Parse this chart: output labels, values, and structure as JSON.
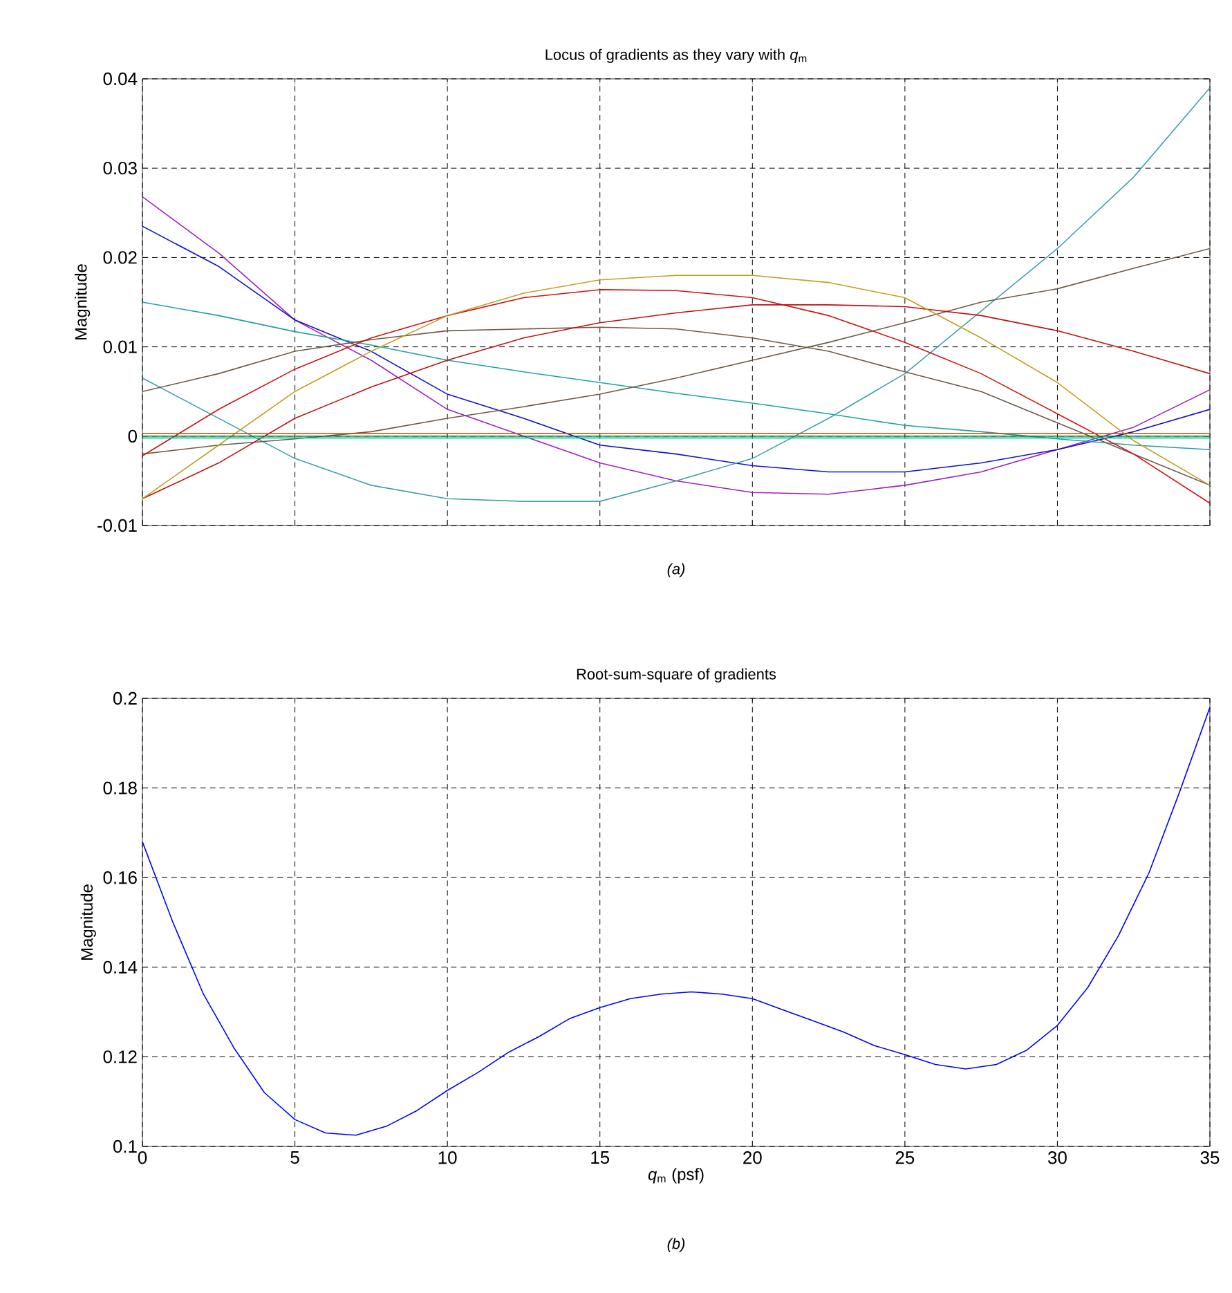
{
  "chart_data": [
    {
      "type": "line",
      "title": "Locus of gradients as they vary with *q*$_{m}$",
      "ylabel": "Magnitude",
      "annotations": [
        "(a)"
      ],
      "x": [
        0,
        2.5,
        5,
        7.5,
        10,
        12.5,
        15,
        17.5,
        20,
        22.5,
        25,
        27.5,
        30,
        32.5,
        35
      ],
      "series": [
        {
          "color": "#a020c0",
          "values": [
            0.0268,
            0.0205,
            0.013,
            0.0085,
            0.003,
            0.0,
            -0.003,
            -0.005,
            -0.0063,
            -0.0065,
            -0.0055,
            -0.004,
            -0.0015,
            0.001,
            0.0052
          ]
        },
        {
          "color": "#1010d0",
          "values": [
            0.0235,
            0.019,
            0.013,
            0.0095,
            0.0047,
            0.002,
            -0.001,
            -0.002,
            -0.0033,
            -0.004,
            -0.004,
            -0.003,
            -0.0015,
            0.0005,
            0.003
          ]
        },
        {
          "color": "#20a0a0",
          "values": [
            0.015,
            0.0135,
            0.0117,
            0.0102,
            0.0085,
            0.0072,
            0.006,
            0.0048,
            0.0037,
            0.0025,
            0.0012,
            0.0005,
            -0.0003,
            -0.001,
            -0.0015
          ]
        },
        {
          "color": "#40a0a8",
          "values": [
            0.0065,
            0.002,
            -0.0025,
            -0.0055,
            -0.007,
            -0.0073,
            -0.0073,
            -0.005,
            -0.0025,
            0.002,
            0.007,
            0.014,
            0.021,
            0.029,
            0.039
          ]
        },
        {
          "color": "#6e5a46",
          "values": [
            0.005,
            0.007,
            0.0095,
            0.0108,
            0.0118,
            0.012,
            0.0122,
            0.012,
            0.011,
            0.0095,
            0.0072,
            0.005,
            0.0015,
            -0.002,
            -0.0055
          ]
        },
        {
          "color": "#6e5a46",
          "values": [
            -0.002,
            -0.001,
            -0.0003,
            0.0005,
            0.002,
            0.0033,
            0.0047,
            0.0065,
            0.0085,
            0.0105,
            0.0127,
            0.015,
            0.0165,
            0.0188,
            0.021
          ]
        },
        {
          "color": "#d01010",
          "values": [
            -0.0022,
            0.003,
            0.0075,
            0.011,
            0.0135,
            0.0155,
            0.0164,
            0.0163,
            0.0155,
            0.0135,
            0.0105,
            0.007,
            0.0025,
            -0.002,
            -0.0075
          ]
        },
        {
          "color": "#c01010",
          "values": [
            -0.007,
            -0.003,
            0.002,
            0.0055,
            0.0085,
            0.011,
            0.0127,
            0.0138,
            0.0147,
            0.0147,
            0.0145,
            0.0135,
            0.0118,
            0.0095,
            0.007
          ]
        },
        {
          "color": "#c0a020",
          "values": [
            -0.007,
            -0.001,
            0.005,
            0.0095,
            0.0135,
            0.016,
            0.0175,
            0.018,
            0.018,
            0.0172,
            0.0155,
            0.011,
            0.006,
            -0.0005,
            -0.0055
          ]
        },
        {
          "color": "#00c0c0",
          "values": [
            -0.0002,
            -0.0002,
            -0.0002,
            -0.0002,
            -0.0002,
            -0.0002,
            -0.0002,
            -0.0002,
            -0.0002,
            -0.0002,
            -0.0002,
            -0.0002,
            -0.0002,
            -0.0002,
            -0.0002
          ]
        },
        {
          "color": "#e04000",
          "values": [
            0.0003,
            0.0003,
            0.0003,
            0.0003,
            0.0003,
            0.0003,
            0.0003,
            0.0003,
            0.0003,
            0.0003,
            0.0003,
            0.0003,
            0.0003,
            0.0003,
            0.0003
          ]
        },
        {
          "color": "#008000",
          "values": [
            0.0,
            0.0,
            0.0,
            0.0,
            0.0,
            0.0,
            0.0,
            0.0,
            0.0,
            0.0,
            0.0,
            0.0,
            0.0,
            0.0,
            0.0
          ]
        }
      ],
      "xlim": [
        0,
        35
      ],
      "xticks": [
        {
          "value": 0,
          "label": null
        },
        {
          "value": 5,
          "label": null
        },
        {
          "value": 10,
          "label": null
        },
        {
          "value": 15,
          "label": null
        },
        {
          "value": 20,
          "label": null
        },
        {
          "value": 25,
          "label": null
        },
        {
          "value": 30,
          "label": null
        },
        {
          "value": 35,
          "label": null
        }
      ],
      "ylim": [
        -0.01,
        0.04
      ],
      "yticks": [
        -0.01,
        0,
        0.01,
        0.02,
        0.03,
        0.04
      ],
      "tick_labels": "y",
      "grid": true
    },
    {
      "type": "line",
      "title": "Root-sum-square of gradients",
      "xlabel": "*q*$_{m}$ (psf)",
      "ylabel": "Magnitude",
      "annotations": [
        "(b)"
      ],
      "x": [
        0,
        1,
        2,
        3,
        4,
        5,
        6,
        7,
        8,
        9,
        10,
        11,
        12,
        13,
        14,
        15,
        16,
        17,
        18,
        19,
        20,
        21,
        22,
        23,
        24,
        25,
        26,
        27,
        28,
        29,
        30,
        31,
        32,
        33,
        34,
        35
      ],
      "series": [
        {
          "color": "#0000ff",
          "values": [
            0.168,
            0.15,
            0.134,
            0.122,
            0.112,
            0.106,
            0.103,
            0.1025,
            0.1045,
            0.108,
            0.1125,
            0.1165,
            0.121,
            0.1245,
            0.1285,
            0.131,
            0.133,
            0.134,
            0.1345,
            0.134,
            0.133,
            0.1305,
            0.128,
            0.1255,
            0.1225,
            0.1205,
            0.1183,
            0.1173,
            0.1183,
            0.1215,
            0.127,
            0.1355,
            0.147,
            0.161,
            0.179,
            0.198
          ]
        }
      ],
      "xlim": [
        0,
        35
      ],
      "xticks": [
        0,
        5,
        10,
        15,
        20,
        25,
        30,
        35
      ],
      "ylim": [
        0.1,
        0.2
      ],
      "yticks": [
        0.1,
        0.12,
        0.14,
        0.16,
        0.18,
        0.2
      ],
      "grid": true
    }
  ]
}
